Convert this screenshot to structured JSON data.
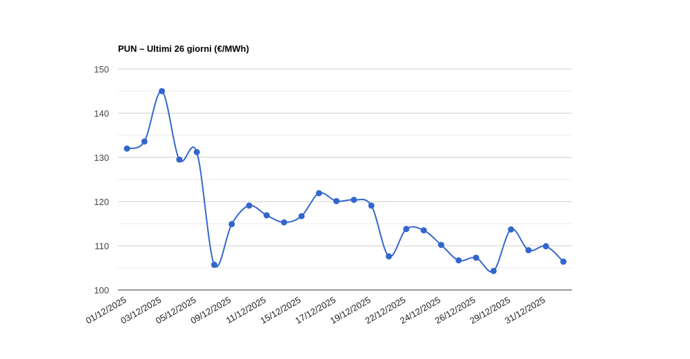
{
  "chart_data": {
    "type": "line",
    "title": "PUN – Ultimi 26 giorni (€/MWh)",
    "xlabel": "",
    "ylabel": "",
    "ylim": [
      100,
      150
    ],
    "yticks": [
      "100",
      "110",
      "120",
      "130",
      "140",
      "150"
    ],
    "grid": true,
    "legend": "none",
    "line_color": "#3366cc",
    "x": [
      "01/12/2025",
      "02/12/2025",
      "03/12/2025",
      "04/12/2025",
      "05/12/2025",
      "06/12/2025",
      "09/12/2025",
      "10/12/2025",
      "11/12/2025",
      "12/12/2025",
      "15/12/2025",
      "16/12/2025",
      "17/12/2025",
      "18/12/2025",
      "19/12/2025",
      "20/12/2025",
      "22/12/2025",
      "23/12/2025",
      "24/12/2025",
      "25/12/2025",
      "26/12/2025",
      "27/12/2025",
      "29/12/2025",
      "30/12/2025",
      "31/12/2025",
      "01/01/2026"
    ],
    "x_tick_labels": [
      "01/12/2025",
      "03/12/2025",
      "05/12/2025",
      "09/12/2025",
      "11/12/2025",
      "15/12/2025",
      "17/12/2025",
      "19/12/2025",
      "22/12/2025",
      "24/12/2025",
      "26/12/2025",
      "29/12/2025",
      "31/12/2025"
    ],
    "series": [
      {
        "values": [
          132.0,
          133.6,
          145.0,
          129.5,
          131.2,
          105.7,
          114.9,
          119.1,
          116.9,
          115.3,
          116.7,
          121.9,
          120.1,
          120.4,
          119.1,
          107.6,
          113.8,
          113.5,
          110.2,
          106.7,
          107.3,
          104.3,
          113.7,
          109.0,
          109.9,
          106.4
        ]
      }
    ]
  }
}
